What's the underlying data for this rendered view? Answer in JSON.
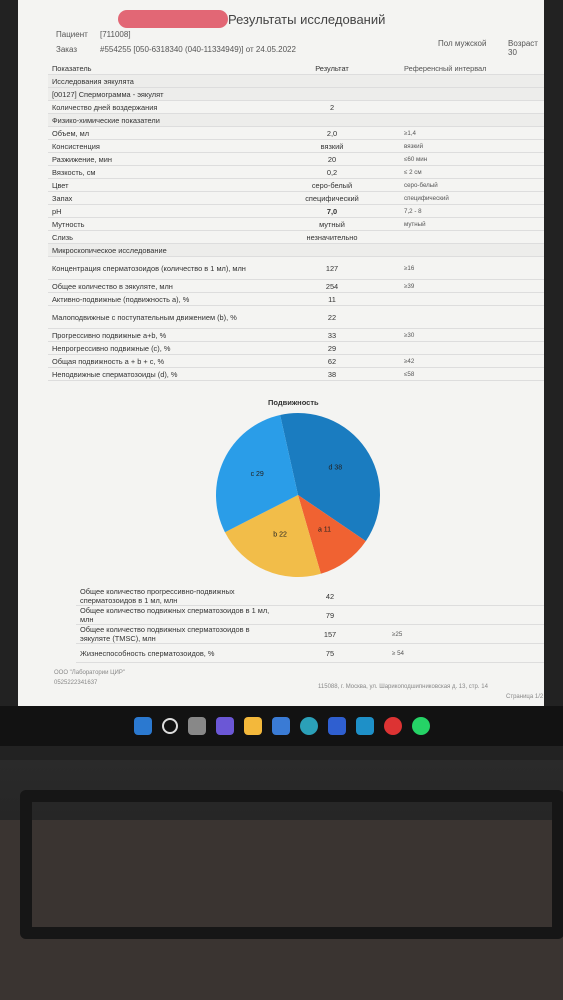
{
  "document": {
    "title": "Результаты исследований",
    "patient_label": "Пациент",
    "patient_value": "[711008]",
    "order_label": "Заказ",
    "order_value": "#554255 [050-6318340 (040-11334949)] от 24.05.2022",
    "sex": "Пол мужской",
    "age": "Возраст 30",
    "headers": [
      "Показатель",
      "Результат",
      "Референсный интервал"
    ],
    "sections": {
      "main": "Исследования эякулята",
      "sperm": "[00127] Спермограмма - эякулят",
      "phys": "Физико-химические показатели",
      "micro": "Микроскопическое исследование"
    },
    "rows": [
      {
        "name": "Количество дней воздержания",
        "result": "2",
        "ref": ""
      },
      {
        "name": "Объем, мл",
        "result": "2,0",
        "ref": "≥1,4"
      },
      {
        "name": "Консистенция",
        "result": "вязкий",
        "ref": "вязкий"
      },
      {
        "name": "Разжижение, мин",
        "result": "20",
        "ref": "≤60 мин"
      },
      {
        "name": "Вязкость, см",
        "result": "0,2",
        "ref": "≤ 2 см"
      },
      {
        "name": "Цвет",
        "result": "серо-белый",
        "ref": "серо-белый"
      },
      {
        "name": "Запах",
        "result": "специфический",
        "ref": "специфический"
      },
      {
        "name": "pH",
        "result": "7,0",
        "ref": "7,2 - 8"
      },
      {
        "name": "Мутность",
        "result": "мутный",
        "ref": "мутный"
      },
      {
        "name": "Слизь",
        "result": "незначительно",
        "ref": ""
      }
    ],
    "micro_rows": [
      {
        "name": "Концентрация сперматозоидов (количество в 1 мл), млн",
        "result": "127",
        "ref": "≥16"
      },
      {
        "name": "Общее количество в эякуляте, млн",
        "result": "254",
        "ref": "≥39"
      },
      {
        "name": "Активно-подвижные (подвижность а), %",
        "result": "11",
        "ref": ""
      },
      {
        "name": "Малоподвижные с поступательным движением (b), %",
        "result": "22",
        "ref": ""
      },
      {
        "name": "Прогрессивно подвижные a+b, %",
        "result": "33",
        "ref": "≥30"
      },
      {
        "name": "Непрогрессивно подвижные (c), %",
        "result": "29",
        "ref": ""
      },
      {
        "name": "Общая подвижность a + b + c, %",
        "result": "62",
        "ref": "≥42"
      },
      {
        "name": "Неподвижные сперматозоиды (d), %",
        "result": "38",
        "ref": "≤58"
      }
    ],
    "chart_title": "Подвижность",
    "bottom_rows": [
      {
        "name": "Общее количество прогрессивно-подвижных сперматозоидов в 1 мл, млн",
        "result": "42",
        "ref": ""
      },
      {
        "name": "Общее количество подвижных сперматозоидов в 1 мл, млн",
        "result": "79",
        "ref": ""
      },
      {
        "name": "Общее количество подвижных сперматозоидов в эякуляте (TMSC), млн",
        "result": "157",
        "ref": "≥25"
      },
      {
        "name": "Жизнеспособность сперматозоидов, %",
        "result": "75",
        "ref": "≥ 54"
      }
    ],
    "footer_left": "ООО \"Лаборатории ЦИР\"",
    "footer_code": "0525222341637",
    "footer_right": "115088, г. Москва, ул. Шарикоподшипниковская д. 13, стр. 14",
    "page": "Страница 1/2"
  },
  "chart_data": {
    "type": "pie",
    "title": "Подвижность",
    "labels": [
      "d",
      "a",
      "b",
      "c"
    ],
    "values": [
      38,
      11,
      22,
      29
    ],
    "colors": [
      "#1a7cc0",
      "#f06232",
      "#f2bd49",
      "#2a9de8"
    ]
  },
  "taskbar_icons": [
    "windows-icon",
    "search-icon",
    "taskview-icon",
    "chat-icon",
    "folder-icon",
    "store-icon",
    "edge-icon",
    "app-icon",
    "app2-icon",
    "app3-icon",
    "whatsapp-icon"
  ],
  "colors": {
    "screen": "#f4f4f2",
    "accent": "#1a7cc0"
  }
}
